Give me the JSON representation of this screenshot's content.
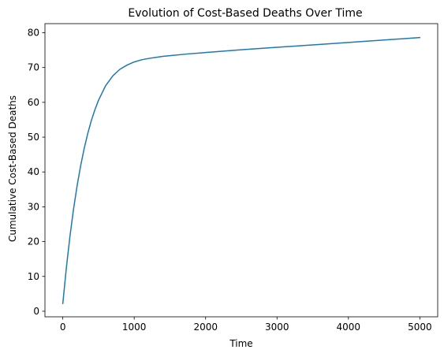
{
  "chart_data": {
    "type": "line",
    "title": "Evolution of Cost-Based Deaths Over Time",
    "xlabel": "Time",
    "ylabel": "Cumulative Cost-Based Deaths",
    "xlim": [
      -250,
      5250
    ],
    "ylim": [
      -1.6,
      82.6
    ],
    "xticks": [
      0,
      1000,
      2000,
      3000,
      4000,
      5000
    ],
    "yticks": [
      0,
      10,
      20,
      30,
      40,
      50,
      60,
      70,
      80
    ],
    "grid": false,
    "series": [
      {
        "color": "#1f77b4",
        "x": [
          0,
          50,
          100,
          150,
          200,
          250,
          300,
          350,
          400,
          450,
          500,
          600,
          700,
          800,
          900,
          1000,
          1100,
          1200,
          1300,
          1400,
          1500,
          1750,
          2000,
          2500,
          3000,
          3500,
          4000,
          4500,
          5000
        ],
        "y": [
          2.2,
          12.5,
          21.5,
          29.3,
          36.0,
          41.8,
          46.8,
          51.1,
          54.8,
          57.9,
          60.6,
          64.8,
          67.6,
          69.5,
          70.7,
          71.6,
          72.2,
          72.6,
          72.9,
          73.2,
          73.4,
          73.9,
          74.3,
          75.1,
          75.8,
          76.5,
          77.2,
          77.9,
          78.6
        ]
      }
    ]
  }
}
